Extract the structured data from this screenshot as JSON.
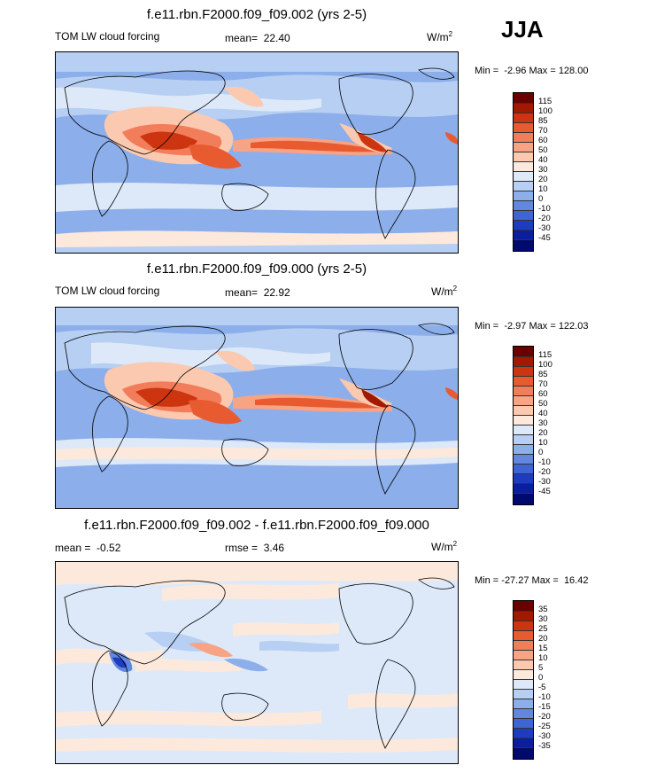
{
  "season": "JJA",
  "panels": [
    {
      "title": "f.e11.rbn.F2000.f09_f09.002 (yrs 2-5)",
      "left_label": "TOM LW cloud forcing",
      "mean_label": "mean=",
      "mean_value": "22.40",
      "units": "W/m",
      "units_sup": "2",
      "min_label": "Min =",
      "min_value": "-2.96",
      "max_label": "Max =",
      "max_value": "128.00",
      "colorbar_levels": [
        "115",
        "100",
        "85",
        "70",
        "60",
        "50",
        "40",
        "30",
        "20",
        "10",
        "0",
        "-10",
        "-20",
        "-30",
        "-45"
      ]
    },
    {
      "title": "f.e11.rbn.F2000.f09_f09.000 (yrs 2-5)",
      "left_label": "TOM LW cloud forcing",
      "mean_label": "mean=",
      "mean_value": "22.92",
      "units": "W/m",
      "units_sup": "2",
      "min_label": "Min =",
      "min_value": "-2.97",
      "max_label": "Max =",
      "max_value": "122.03",
      "colorbar_levels": [
        "115",
        "100",
        "85",
        "70",
        "60",
        "50",
        "40",
        "30",
        "20",
        "10",
        "0",
        "-10",
        "-20",
        "-30",
        "-45"
      ]
    },
    {
      "title": "f.e11.rbn.F2000.f09_f09.002 - f.e11.rbn.F2000.f09_f09.000",
      "left_label": "mean =",
      "mean_label": "rmse =",
      "left_value": "-0.52",
      "mean_value": "3.46",
      "units": "W/m",
      "units_sup": "2",
      "min_label": "Min =",
      "min_value": "-27.27",
      "max_label": "Max =",
      "max_value": "16.42",
      "colorbar_levels": [
        "35",
        "30",
        "25",
        "20",
        "15",
        "10",
        "5",
        "0",
        "-5",
        "-10",
        "-15",
        "-20",
        "-25",
        "-30",
        "-35"
      ]
    }
  ],
  "colors": {
    "scale": [
      "#6b0000",
      "#a11a00",
      "#cc3510",
      "#e85a30",
      "#f27d5a",
      "#f7a384",
      "#fbc9b0",
      "#fde9dc",
      "#dde9f8",
      "#b6cff2",
      "#8caeea",
      "#6187de",
      "#3f64d4",
      "#1e3cbf",
      "#0b1e9e",
      "#000a6e"
    ]
  }
}
